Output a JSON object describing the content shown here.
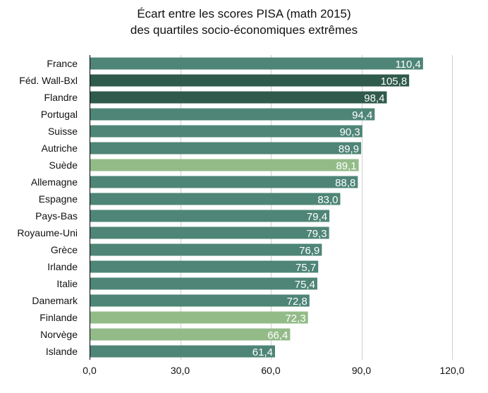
{
  "chart_data": {
    "type": "bar",
    "orientation": "horizontal",
    "title": "Écart entre les scores PISA (math 2015)",
    "subtitle": "des quartiles socio-économiques extrêmes",
    "xlabel": "",
    "ylabel": "",
    "xlim": [
      0,
      120
    ],
    "ticks": [
      "0,0",
      "30,0",
      "60,0",
      "90,0",
      "120,0"
    ],
    "tick_values": [
      0,
      30,
      60,
      90,
      120
    ],
    "grid": "vertical",
    "categories": [
      "France",
      "Féd. Wall-Bxl",
      "Flandre",
      "Portugal",
      "Suisse",
      "Autriche",
      "Suède",
      "Allemagne",
      "Espagne",
      "Pays-Bas",
      "Royaume-Uni",
      "Grèce",
      "Irlande",
      "Italie",
      "Danemark",
      "Finlande",
      "Norvège",
      "Islande"
    ],
    "values": [
      110.4,
      105.8,
      98.4,
      94.4,
      90.3,
      89.9,
      89.1,
      88.8,
      83.0,
      79.4,
      79.3,
      76.9,
      75.7,
      75.4,
      72.8,
      72.3,
      66.4,
      61.4
    ],
    "value_labels": [
      "110,4",
      "105,8",
      "98,4",
      "94,4",
      "90,3",
      "89,9",
      "89,1",
      "88,8",
      "83,0",
      "79,4",
      "79,3",
      "76,9",
      "75,7",
      "75,4",
      "72,8",
      "72,3",
      "66,4",
      "61,4"
    ],
    "colors": [
      "#4e8576",
      "#2f5a4c",
      "#2f5a4c",
      "#4e8576",
      "#4e8576",
      "#4e8576",
      "#93bb88",
      "#4e8576",
      "#4e8576",
      "#4e8576",
      "#4e8576",
      "#4e8576",
      "#4e8576",
      "#4e8576",
      "#4e8576",
      "#93bb88",
      "#93bb88",
      "#4e8576"
    ]
  }
}
